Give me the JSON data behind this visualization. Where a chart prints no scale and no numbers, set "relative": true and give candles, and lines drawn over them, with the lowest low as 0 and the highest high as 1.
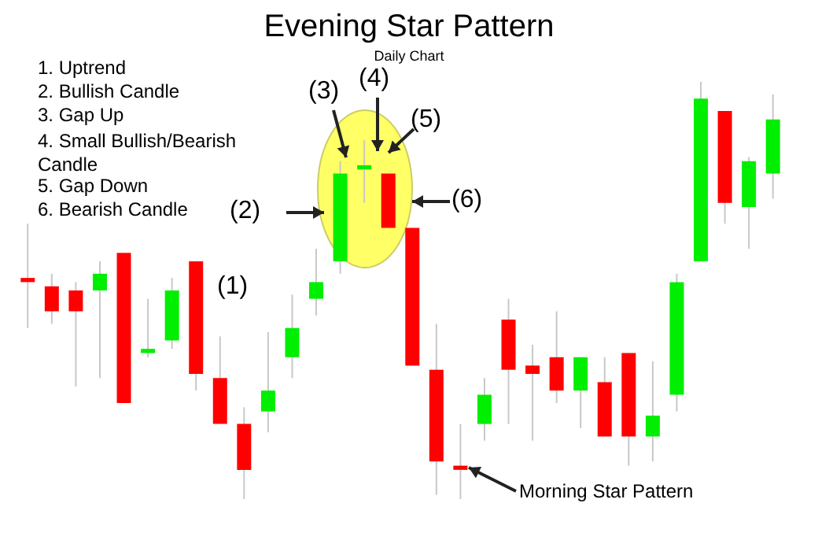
{
  "chart_data": {
    "type": "candlestick",
    "title": "Evening Star Pattern",
    "subtitle": "Daily Chart",
    "relative": true,
    "categories": [
      null,
      null,
      null,
      null,
      null,
      null,
      null,
      null,
      null,
      null,
      null,
      null,
      null,
      null,
      null,
      null,
      null,
      null,
      null,
      null,
      null,
      null,
      null,
      null,
      null,
      null,
      null,
      null,
      null,
      null,
      null,
      null
    ],
    "ohlc": [
      [
        0.53,
        0.66,
        0.41,
        0.52
      ],
      [
        0.51,
        0.54,
        0.42,
        0.45
      ],
      [
        0.5,
        0.52,
        0.27,
        0.45
      ],
      [
        0.5,
        0.57,
        0.29,
        0.54
      ],
      [
        0.59,
        0.59,
        0.23,
        0.23
      ],
      [
        0.35,
        0.48,
        0.34,
        0.36
      ],
      [
        0.38,
        0.53,
        0.36,
        0.5
      ],
      [
        0.57,
        0.57,
        0.26,
        0.3
      ],
      [
        0.29,
        0.39,
        0.18,
        0.18
      ],
      [
        0.18,
        0.22,
        0,
        0.07
      ],
      [
        0.21,
        0.4,
        0.16,
        0.26
      ],
      [
        0.34,
        0.49,
        0.29,
        0.41
      ],
      [
        0.48,
        0.6,
        0.44,
        0.52
      ],
      [
        0.57,
        0.81,
        0.54,
        0.78
      ],
      [
        0.79,
        0.86,
        0.71,
        0.8
      ],
      [
        0.78,
        0.78,
        0.65,
        0.65
      ],
      [
        0.65,
        0.65,
        0.32,
        0.32
      ],
      [
        0.31,
        0.42,
        0.01,
        0.09
      ],
      [
        0.08,
        0.18,
        0,
        0.07
      ],
      [
        0.18,
        0.29,
        0.14,
        0.25
      ],
      [
        0.43,
        0.48,
        0.18,
        0.31
      ],
      [
        0.32,
        0.37,
        0.14,
        0.3
      ],
      [
        0.34,
        0.45,
        0.23,
        0.26
      ],
      [
        0.26,
        0.34,
        0.17,
        0.34
      ],
      [
        0.28,
        0.34,
        0.15,
        0.15
      ],
      [
        0.35,
        0.35,
        0.08,
        0.15
      ],
      [
        0.15,
        0.33,
        0.09,
        0.2
      ],
      [
        0.25,
        0.54,
        0.21,
        0.52
      ],
      [
        0.57,
        1,
        0.57,
        0.96
      ],
      [
        0.93,
        0.93,
        0.66,
        0.71
      ],
      [
        0.7,
        0.82,
        0.6,
        0.81
      ],
      [
        0.78,
        0.97,
        0.72,
        0.91
      ]
    ],
    "colors": [
      "#ff0000",
      "#ff0000",
      "#ff0000",
      "#00ee00",
      "#ff0000",
      "#00ee00",
      "#00ee00",
      "#ff0000",
      "#ff0000",
      "#ff0000",
      "#00ee00",
      "#00ee00",
      "#00ee00",
      "#00ee00",
      "#00ee00",
      "#ff0000",
      "#ff0000",
      "#ff0000",
      "#ff0000",
      "#00ee00",
      "#ff0000",
      "#ff0000",
      "#ff0000",
      "#00ee00",
      "#ff0000",
      "#ff0000",
      "#00ee00",
      "#00ee00",
      "#00ee00",
      "#ff0000",
      "#00ee00",
      "#00ee00"
    ],
    "annotations": [
      "1. Uptrend",
      "2. Bullish Candle",
      "3. Gap Up",
      "4. Small Bullish/Bearish Candle",
      "5. Gap Down",
      "6. Bearish Candle",
      "(1)",
      "(2)",
      "(3)",
      "(4)",
      "(5)",
      "(6)",
      "Morning Star Pattern"
    ]
  }
}
